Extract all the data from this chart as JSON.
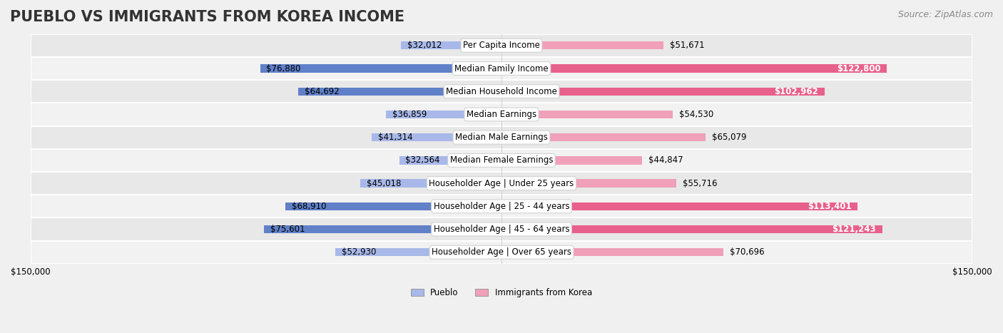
{
  "title": "PUEBLO VS IMMIGRANTS FROM KOREA INCOME",
  "source": "Source: ZipAtlas.com",
  "categories": [
    "Per Capita Income",
    "Median Family Income",
    "Median Household Income",
    "Median Earnings",
    "Median Male Earnings",
    "Median Female Earnings",
    "Householder Age | Under 25 years",
    "Householder Age | 25 - 44 years",
    "Householder Age | 45 - 64 years",
    "Householder Age | Over 65 years"
  ],
  "pueblo_values": [
    32012,
    76880,
    64692,
    36859,
    41314,
    32564,
    45018,
    68910,
    75601,
    52930
  ],
  "korea_values": [
    51671,
    122800,
    102962,
    54530,
    65079,
    44847,
    55716,
    113401,
    121243,
    70696
  ],
  "pueblo_labels": [
    "$32,012",
    "$76,880",
    "$64,692",
    "$36,859",
    "$41,314",
    "$32,564",
    "$45,018",
    "$68,910",
    "$75,601",
    "$52,930"
  ],
  "korea_labels": [
    "$51,671",
    "$122,800",
    "$102,962",
    "$54,530",
    "$65,079",
    "$44,847",
    "$55,716",
    "$113,401",
    "$121,243",
    "$70,696"
  ],
  "pueblo_color_light": "#a8b8e8",
  "pueblo_color_dark": "#6080c8",
  "korea_color_light": "#f0a0b8",
  "korea_color_dark": "#e8608c",
  "max_value": 150000,
  "x_tick_labels": [
    "$150,000",
    "$150,000"
  ],
  "legend_pueblo": "Pueblo",
  "legend_korea": "Immigrants from Korea",
  "background_color": "#f5f5f5",
  "row_bg_color": "#ffffff",
  "alt_row_bg_color": "#eeeeee",
  "title_fontsize": 15,
  "label_fontsize": 8.5,
  "category_fontsize": 8.5,
  "source_fontsize": 9
}
